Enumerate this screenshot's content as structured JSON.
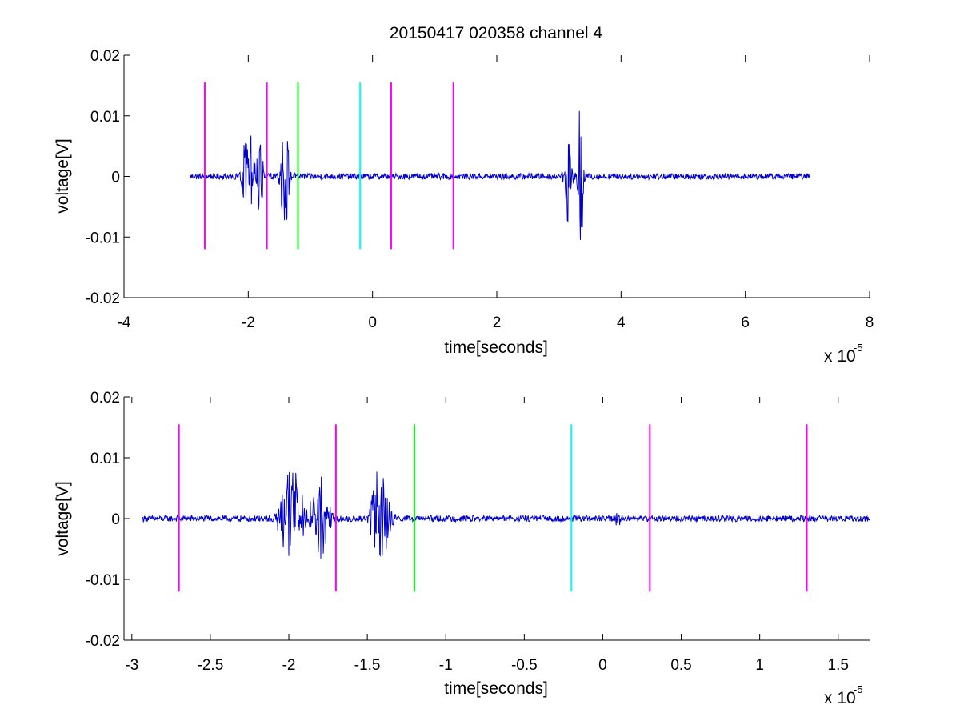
{
  "chart_data": [
    {
      "type": "line",
      "title": "20150417 020358 channel 4",
      "xlabel": "time[seconds]",
      "ylabel": "voltage[V]",
      "x_exponent_label": "x 10",
      "x_exponent": "-5",
      "xlim": [
        -4,
        8
      ],
      "ylim": [
        -0.02,
        0.02
      ],
      "x_units_scale": 1e-05,
      "xticks": [
        -4,
        -2,
        0,
        2,
        4,
        6,
        8
      ],
      "xtick_labels": [
        "-4",
        "-2",
        "0",
        "2",
        "4",
        "6",
        "8"
      ],
      "yticks": [
        -0.02,
        -0.01,
        0,
        0.01,
        0.02
      ],
      "ytick_labels": [
        "-0.02",
        "-0.01",
        "0",
        "0.01",
        "0.02"
      ],
      "grid": false,
      "series": [
        {
          "color": "#0000cc",
          "x_range": [
            -2.93,
            7.03
          ],
          "baseline": 0,
          "noise_amplitude": 0.0005,
          "bursts": [
            {
              "x": -2.0,
              "amplitude": 0.009,
              "width": 0.1
            },
            {
              "x": -1.82,
              "amplitude": 0.007,
              "width": 0.06
            },
            {
              "x": -1.41,
              "amplitude": 0.009,
              "width": 0.08
            },
            {
              "x": 3.15,
              "amplitude": 0.008,
              "width": 0.06
            },
            {
              "x": 3.35,
              "amplitude": 0.013,
              "width": 0.05
            }
          ]
        }
      ],
      "markers": [
        {
          "x": -2.7,
          "color": "#ff00ff",
          "ymin": -0.012,
          "ymax": 0.0155
        },
        {
          "x": -1.7,
          "color": "#ff00ff",
          "ymin": -0.012,
          "ymax": 0.0155
        },
        {
          "x": -1.2,
          "color": "#00ff00",
          "ymin": -0.012,
          "ymax": 0.0155
        },
        {
          "x": -0.2,
          "color": "#00ffff",
          "ymin": -0.012,
          "ymax": 0.0155
        },
        {
          "x": 0.3,
          "color": "#ff00ff",
          "ymin": -0.012,
          "ymax": 0.0155
        },
        {
          "x": 1.3,
          "color": "#ff00ff",
          "ymin": -0.012,
          "ymax": 0.0155
        }
      ]
    },
    {
      "type": "line",
      "title": "",
      "xlabel": "time[seconds]",
      "ylabel": "voltage[V]",
      "x_exponent_label": "x 10",
      "x_exponent": "-5",
      "xlim": [
        -3.05,
        1.7
      ],
      "ylim": [
        -0.02,
        0.02
      ],
      "x_units_scale": 1e-05,
      "xticks": [
        -3,
        -2.5,
        -2,
        -1.5,
        -1,
        -0.5,
        0,
        0.5,
        1,
        1.5
      ],
      "xtick_labels": [
        "-3",
        "-2.5",
        "-2",
        "-1.5",
        "-1",
        "-0.5",
        "0",
        "0.5",
        "1",
        "1.5"
      ],
      "yticks": [
        -0.02,
        -0.01,
        0,
        0.01,
        0.02
      ],
      "ytick_labels": [
        "-0.02",
        "-0.01",
        "0",
        "0.01",
        "0.02"
      ],
      "grid": false,
      "series": [
        {
          "color": "#0000cc",
          "x_range": [
            -2.93,
            1.7
          ],
          "baseline": 0,
          "noise_amplitude": 0.0005,
          "bursts": [
            {
              "x": -1.98,
              "amplitude": 0.009,
              "width": 0.08
            },
            {
              "x": -1.8,
              "amplitude": 0.007,
              "width": 0.06
            },
            {
              "x": -1.42,
              "amplitude": 0.009,
              "width": 0.06
            },
            {
              "x": 0.1,
              "amplitude": 0.0012,
              "width": 0.02
            }
          ]
        }
      ],
      "markers": [
        {
          "x": -2.7,
          "color": "#ff00ff",
          "ymin": -0.012,
          "ymax": 0.0155
        },
        {
          "x": -1.7,
          "color": "#ff00ff",
          "ymin": -0.012,
          "ymax": 0.0155
        },
        {
          "x": -1.2,
          "color": "#00ff00",
          "ymin": -0.012,
          "ymax": 0.0155
        },
        {
          "x": -0.2,
          "color": "#00ffff",
          "ymin": -0.012,
          "ymax": 0.0155
        },
        {
          "x": 0.3,
          "color": "#ff00ff",
          "ymin": -0.012,
          "ymax": 0.0155
        },
        {
          "x": 1.3,
          "color": "#ff00ff",
          "ymin": -0.012,
          "ymax": 0.0155
        }
      ]
    }
  ]
}
